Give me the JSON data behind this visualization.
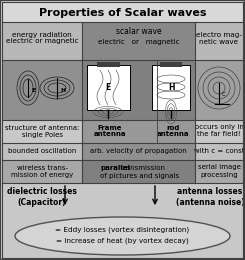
{
  "title": "Properties of Scalar waves",
  "bg_color": "#c8c8c8",
  "border_color": "#404040",
  "col1_header": "energy radiation\nelectric or magnetic",
  "col2_header_electric": "scalar wave",
  "col2_header_sub": "electric   or   magnetic",
  "col3_header": "electro mag-\nnetic wave",
  "row_struct_c1": "structure of antenna:\nsingle Poles",
  "row_struct_c2a": "Frame",
  "row_struct_c2b": "antenna",
  "row_struct_c2c": "rod",
  "row_struct_c2d": "antenna",
  "row_struct_c3": "occurs only in\nthe far field!",
  "row_osc_c1": "bounded oscillation",
  "row_osc_c2": "arb. velocity of propagation",
  "row_osc_c3": "with c = const",
  "row_wire_c1": "wireless trans-\nmission of energy",
  "row_wire_c2_bold": "parallel",
  "row_wire_c2_rest": " transmission\nof pictures and signals",
  "row_wire_c3": "serial image\nprocessing",
  "bottom_left_bold": "dielectric losses",
  "bottom_left_paren": "(Capacitor)",
  "bottom_right_bold": "antenna losses",
  "bottom_right_paren": "(antenna noise)",
  "ellipse_line1": "= Eddy losses (vortex disintegration)",
  "ellipse_line2": "= Increase of heat (by vortex decay)"
}
